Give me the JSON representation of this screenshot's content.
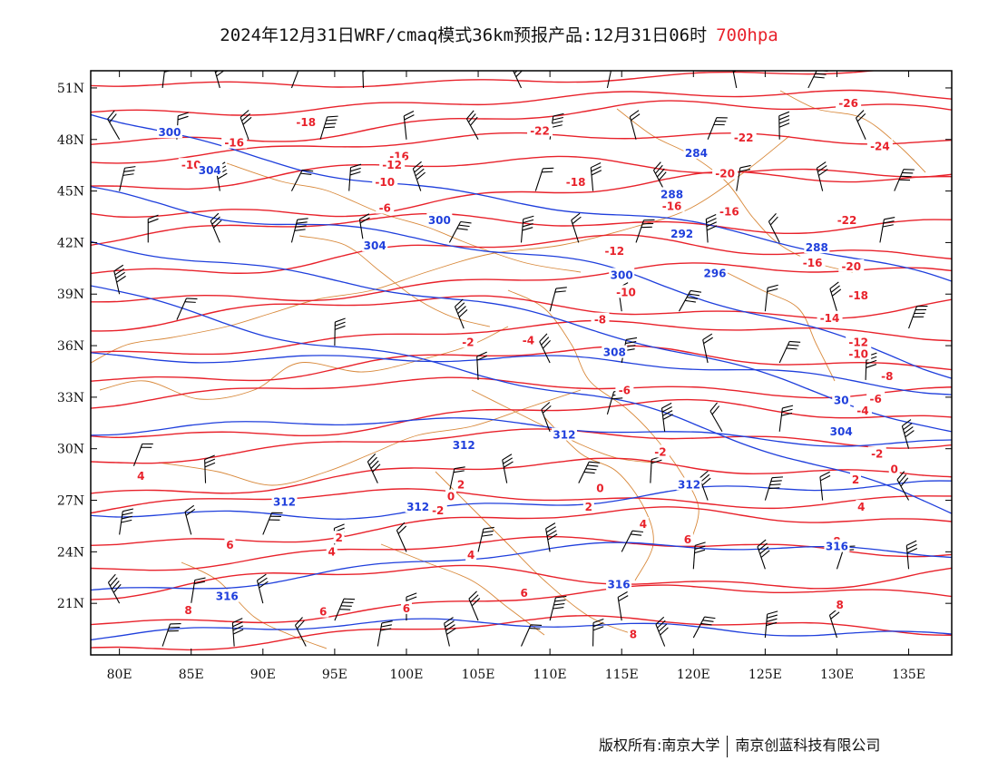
{
  "header": {
    "title": "2024年12月31日WRF/cmaq模式36km预报产品:12月31日06时",
    "level": "700hpa"
  },
  "footer": {
    "copyright": "版权所有:南京大学",
    "company": "南京创蓝科技有限公司"
  },
  "map": {
    "lon_range": [
      78,
      138
    ],
    "lat_range": [
      18,
      52
    ],
    "lon_ticks": [
      "80E",
      "85E",
      "90E",
      "95E",
      "100E",
      "105E",
      "110E",
      "115E",
      "120E",
      "125E",
      "130E",
      "135E"
    ],
    "lat_ticks": [
      "21N",
      "24N",
      "27N",
      "30N",
      "33N",
      "36N",
      "39N",
      "42N",
      "45N",
      "48N",
      "51N"
    ],
    "colors": {
      "temperature": "#e8222b",
      "height": "#1f3fdc",
      "boundary": "#d8883a",
      "wind": "#000000"
    },
    "temperature_labels": [
      {
        "text": "-18",
        "lon": 93,
        "lat": 49
      },
      {
        "text": "-16",
        "lon": 88,
        "lat": 47.8
      },
      {
        "text": "-16",
        "lon": 99.5,
        "lat": 47
      },
      {
        "text": "-12",
        "lon": 99,
        "lat": 46.5
      },
      {
        "text": "-10",
        "lon": 85,
        "lat": 46.5
      },
      {
        "text": "-10",
        "lon": 98.5,
        "lat": 45.5
      },
      {
        "text": "-6",
        "lon": 98.5,
        "lat": 44
      },
      {
        "text": "-22",
        "lon": 123.5,
        "lat": 48.1
      },
      {
        "text": "-20",
        "lon": 122.2,
        "lat": 46
      },
      {
        "text": "-18",
        "lon": 111.8,
        "lat": 45.5
      },
      {
        "text": "-16",
        "lon": 118.5,
        "lat": 44.1
      },
      {
        "text": "-16",
        "lon": 122.5,
        "lat": 43.8
      },
      {
        "text": "-12",
        "lon": 114.5,
        "lat": 41.5
      },
      {
        "text": "-16",
        "lon": 128.3,
        "lat": 40.8
      },
      {
        "text": "-10",
        "lon": 115.3,
        "lat": 39.1
      },
      {
        "text": "-8",
        "lon": 113.5,
        "lat": 37.5
      },
      {
        "text": "-4",
        "lon": 108.5,
        "lat": 36.3
      },
      {
        "text": "-2",
        "lon": 104.3,
        "lat": 36.2
      },
      {
        "text": "-6",
        "lon": 115.2,
        "lat": 33.4
      },
      {
        "text": "-14",
        "lon": 129.5,
        "lat": 37.6
      },
      {
        "text": "-12",
        "lon": 131.5,
        "lat": 36.2
      },
      {
        "text": "-10",
        "lon": 131.5,
        "lat": 35.5
      },
      {
        "text": "-8",
        "lon": 133.5,
        "lat": 34.2
      },
      {
        "text": "-6",
        "lon": 132.7,
        "lat": 32.9
      },
      {
        "text": "-4",
        "lon": 131.8,
        "lat": 32.2
      },
      {
        "text": "-2",
        "lon": 132.8,
        "lat": 29.7
      },
      {
        "text": "0",
        "lon": 134,
        "lat": 28.8
      },
      {
        "text": "2",
        "lon": 131.3,
        "lat": 28.2
      },
      {
        "text": "4",
        "lon": 131.7,
        "lat": 26.6
      },
      {
        "text": "-2",
        "lon": 117.7,
        "lat": 29.8
      },
      {
        "text": "0",
        "lon": 113.5,
        "lat": 27.7
      },
      {
        "text": "2",
        "lon": 112.7,
        "lat": 26.6
      },
      {
        "text": "4",
        "lon": 116.5,
        "lat": 25.6
      },
      {
        "text": "6",
        "lon": 119.6,
        "lat": 24.7
      },
      {
        "text": "8",
        "lon": 130,
        "lat": 24.6
      },
      {
        "text": "8",
        "lon": 130.2,
        "lat": 20.9
      },
      {
        "text": "8",
        "lon": 115.8,
        "lat": 19.2
      },
      {
        "text": "6",
        "lon": 108.2,
        "lat": 21.6
      },
      {
        "text": "4",
        "lon": 104.5,
        "lat": 23.8
      },
      {
        "text": "2",
        "lon": 103.8,
        "lat": 27.9
      },
      {
        "text": "0",
        "lon": 103.1,
        "lat": 27.2
      },
      {
        "text": "-2",
        "lon": 102.2,
        "lat": 26.4
      },
      {
        "text": "2",
        "lon": 95.3,
        "lat": 24.8
      },
      {
        "text": "4",
        "lon": 94.8,
        "lat": 24
      },
      {
        "text": "6",
        "lon": 100,
        "lat": 20.7
      },
      {
        "text": "6",
        "lon": 94.2,
        "lat": 20.5
      },
      {
        "text": "6",
        "lon": 87.7,
        "lat": 24.4
      },
      {
        "text": "8",
        "lon": 84.8,
        "lat": 20.6
      },
      {
        "text": "4",
        "lon": 81.5,
        "lat": 28.4
      },
      {
        "text": "-26",
        "lon": 130.8,
        "lat": 50.1
      },
      {
        "text": "-24",
        "lon": 133,
        "lat": 47.6
      },
      {
        "text": "-22",
        "lon": 130.7,
        "lat": 43.3
      },
      {
        "text": "-20",
        "lon": 131,
        "lat": 40.6
      },
      {
        "text": "-18",
        "lon": 131.5,
        "lat": 38.9
      },
      {
        "text": "-22",
        "lon": 109.3,
        "lat": 48.5
      }
    ],
    "height_labels": [
      {
        "text": "300",
        "lon": 83.5,
        "lat": 48.4
      },
      {
        "text": "304",
        "lon": 86.3,
        "lat": 46.2
      },
      {
        "text": "300",
        "lon": 102.3,
        "lat": 43.3
      },
      {
        "text": "304",
        "lon": 97.8,
        "lat": 41.8
      },
      {
        "text": "284",
        "lon": 120.2,
        "lat": 47.2
      },
      {
        "text": "288",
        "lon": 118.5,
        "lat": 44.8
      },
      {
        "text": "292",
        "lon": 119.2,
        "lat": 42.5
      },
      {
        "text": "296",
        "lon": 121.5,
        "lat": 40.2
      },
      {
        "text": "300",
        "lon": 115,
        "lat": 40.1
      },
      {
        "text": "288",
        "lon": 128.6,
        "lat": 41.7
      },
      {
        "text": "308",
        "lon": 114.5,
        "lat": 35.6
      },
      {
        "text": "312",
        "lon": 111,
        "lat": 30.8
      },
      {
        "text": "312",
        "lon": 104,
        "lat": 30.2
      },
      {
        "text": "312",
        "lon": 91.5,
        "lat": 26.9
      },
      {
        "text": "312",
        "lon": 100.8,
        "lat": 26.6
      },
      {
        "text": "312",
        "lon": 119.7,
        "lat": 27.9
      },
      {
        "text": "316",
        "lon": 114.8,
        "lat": 22.1
      },
      {
        "text": "316",
        "lon": 87.5,
        "lat": 21.4
      },
      {
        "text": "316",
        "lon": 130,
        "lat": 24.3
      },
      {
        "text": "304",
        "lon": 130.3,
        "lat": 31
      },
      {
        "text": "30",
        "lon": 130.3,
        "lat": 32.8
      }
    ],
    "wind_barbs": [
      {
        "lon": 80,
        "lat": 48
      },
      {
        "lon": 83,
        "lat": 51
      },
      {
        "lon": 87,
        "lat": 51
      },
      {
        "lon": 92,
        "lat": 51
      },
      {
        "lon": 97,
        "lat": 51
      },
      {
        "lon": 108,
        "lat": 51
      },
      {
        "lon": 114,
        "lat": 51
      },
      {
        "lon": 123,
        "lat": 51
      },
      {
        "lon": 128,
        "lat": 51
      },
      {
        "lon": 84,
        "lat": 48
      },
      {
        "lon": 89,
        "lat": 48
      },
      {
        "lon": 94,
        "lat": 48
      },
      {
        "lon": 100,
        "lat": 48
      },
      {
        "lon": 105,
        "lat": 48
      },
      {
        "lon": 110,
        "lat": 48
      },
      {
        "lon": 116,
        "lat": 48
      },
      {
        "lon": 121,
        "lat": 48
      },
      {
        "lon": 126,
        "lat": 48
      },
      {
        "lon": 132,
        "lat": 48
      },
      {
        "lon": 80,
        "lat": 45
      },
      {
        "lon": 87,
        "lat": 45
      },
      {
        "lon": 92,
        "lat": 45
      },
      {
        "lon": 96,
        "lat": 45
      },
      {
        "lon": 101,
        "lat": 45
      },
      {
        "lon": 109,
        "lat": 45
      },
      {
        "lon": 113,
        "lat": 45
      },
      {
        "lon": 118,
        "lat": 45
      },
      {
        "lon": 123,
        "lat": 45
      },
      {
        "lon": 129,
        "lat": 45
      },
      {
        "lon": 134,
        "lat": 45
      },
      {
        "lon": 82,
        "lat": 42
      },
      {
        "lon": 87,
        "lat": 42
      },
      {
        "lon": 92,
        "lat": 42
      },
      {
        "lon": 97,
        "lat": 42
      },
      {
        "lon": 103,
        "lat": 42
      },
      {
        "lon": 108,
        "lat": 42
      },
      {
        "lon": 112,
        "lat": 42
      },
      {
        "lon": 116,
        "lat": 42
      },
      {
        "lon": 121,
        "lat": 42
      },
      {
        "lon": 126,
        "lat": 42
      },
      {
        "lon": 133,
        "lat": 42
      },
      {
        "lon": 80,
        "lat": 39
      },
      {
        "lon": 84,
        "lat": 37.5
      },
      {
        "lon": 95,
        "lat": 36
      },
      {
        "lon": 104,
        "lat": 37
      },
      {
        "lon": 110,
        "lat": 38
      },
      {
        "lon": 115,
        "lat": 38
      },
      {
        "lon": 119,
        "lat": 38
      },
      {
        "lon": 125,
        "lat": 38
      },
      {
        "lon": 130,
        "lat": 38
      },
      {
        "lon": 135,
        "lat": 37
      },
      {
        "lon": 105,
        "lat": 34
      },
      {
        "lon": 110,
        "lat": 35
      },
      {
        "lon": 115,
        "lat": 35
      },
      {
        "lon": 121,
        "lat": 35
      },
      {
        "lon": 126,
        "lat": 35
      },
      {
        "lon": 132,
        "lat": 34
      },
      {
        "lon": 110,
        "lat": 31
      },
      {
        "lon": 114,
        "lat": 32
      },
      {
        "lon": 118,
        "lat": 31
      },
      {
        "lon": 122,
        "lat": 31
      },
      {
        "lon": 126,
        "lat": 31
      },
      {
        "lon": 135,
        "lat": 30
      },
      {
        "lon": 81,
        "lat": 29
      },
      {
        "lon": 86,
        "lat": 28
      },
      {
        "lon": 98,
        "lat": 28
      },
      {
        "lon": 103,
        "lat": 27.5
      },
      {
        "lon": 107,
        "lat": 28
      },
      {
        "lon": 112,
        "lat": 28
      },
      {
        "lon": 117,
        "lat": 28
      },
      {
        "lon": 121,
        "lat": 27
      },
      {
        "lon": 125,
        "lat": 27
      },
      {
        "lon": 129,
        "lat": 27
      },
      {
        "lon": 135,
        "lat": 27
      },
      {
        "lon": 80,
        "lat": 25
      },
      {
        "lon": 85,
        "lat": 25
      },
      {
        "lon": 90,
        "lat": 25
      },
      {
        "lon": 95,
        "lat": 24
      },
      {
        "lon": 100,
        "lat": 24
      },
      {
        "lon": 105,
        "lat": 24
      },
      {
        "lon": 110,
        "lat": 24
      },
      {
        "lon": 115,
        "lat": 24
      },
      {
        "lon": 120,
        "lat": 23
      },
      {
        "lon": 125,
        "lat": 23
      },
      {
        "lon": 130,
        "lat": 23
      },
      {
        "lon": 135,
        "lat": 23
      },
      {
        "lon": 80,
        "lat": 21
      },
      {
        "lon": 85,
        "lat": 21
      },
      {
        "lon": 90,
        "lat": 21
      },
      {
        "lon": 95,
        "lat": 20
      },
      {
        "lon": 100,
        "lat": 20
      },
      {
        "lon": 105,
        "lat": 20
      },
      {
        "lon": 110,
        "lat": 20
      },
      {
        "lon": 115,
        "lat": 20
      },
      {
        "lon": 120,
        "lat": 19
      },
      {
        "lon": 125,
        "lat": 19
      },
      {
        "lon": 130,
        "lat": 19
      },
      {
        "lon": 83,
        "lat": 18.5
      },
      {
        "lon": 88,
        "lat": 18.5
      },
      {
        "lon": 93,
        "lat": 18.5
      },
      {
        "lon": 98,
        "lat": 18.5
      },
      {
        "lon": 103,
        "lat": 18.5
      },
      {
        "lon": 108,
        "lat": 18.5
      },
      {
        "lon": 113,
        "lat": 18.5
      },
      {
        "lon": 118,
        "lat": 18.5
      }
    ]
  }
}
